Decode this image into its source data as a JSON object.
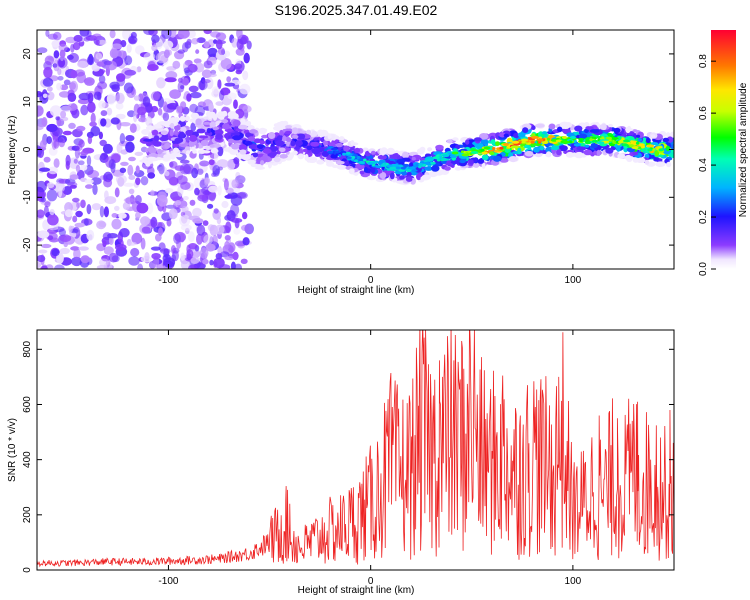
{
  "title": "S196.2025.347.01.49.E02",
  "chart_data": [
    {
      "type": "heatmap",
      "xlabel": "Height of straight line (km)",
      "ylabel": "Frequency (Hz)",
      "xlim": [
        -165,
        150
      ],
      "ylim": [
        -25,
        25
      ],
      "xticks": [
        -100,
        0,
        100
      ],
      "yticks": [
        -20,
        -10,
        0,
        10,
        20
      ],
      "colorbar": {
        "label": "Normalized spectral amplitude",
        "range": [
          0,
          0.92
        ],
        "ticks": [
          0.0,
          0.2,
          0.4,
          0.6,
          0.8
        ]
      },
      "ridge": {
        "x": [
          -110,
          -90,
          -70,
          -55,
          -40,
          -20,
          0,
          20,
          40,
          60,
          80,
          100,
          120,
          140
        ],
        "freq": [
          1,
          3,
          4,
          0,
          2,
          0,
          -3,
          -4,
          -1,
          0,
          2,
          2,
          2,
          0
        ],
        "peak_amplitude": [
          0.2,
          0.15,
          0.2,
          0.25,
          0.2,
          0.3,
          0.45,
          0.4,
          0.5,
          0.85,
          0.9,
          0.6,
          0.65,
          0.75
        ]
      }
    },
    {
      "type": "line",
      "xlabel": "Height of straight line (km)",
      "ylabel": "SNR (10 * v/v)",
      "xlim": [
        -165,
        150
      ],
      "ylim": [
        0,
        870
      ],
      "xticks": [
        -100,
        0,
        100
      ],
      "yticks": [
        0,
        200,
        400,
        600,
        800
      ],
      "series": [
        {
          "name": "SNR",
          "color": "#ee2222",
          "x": [
            -165,
            -150,
            -130,
            -110,
            -90,
            -75,
            -60,
            -50,
            -45,
            -42,
            -40,
            -35,
            -30,
            -25,
            -20,
            -15,
            -10,
            -5,
            0,
            5,
            10,
            15,
            20,
            25,
            30,
            35,
            40,
            45,
            50,
            55,
            60,
            65,
            70,
            75,
            80,
            85,
            90,
            95,
            100,
            105,
            110,
            115,
            120,
            125,
            130,
            135,
            140,
            145,
            150
          ],
          "y": [
            25,
            25,
            30,
            30,
            35,
            40,
            60,
            100,
            140,
            180,
            120,
            80,
            100,
            120,
            140,
            150,
            170,
            200,
            240,
            300,
            380,
            350,
            360,
            500,
            420,
            450,
            480,
            440,
            560,
            400,
            380,
            420,
            360,
            340,
            420,
            380,
            350,
            470,
            220,
            240,
            300,
            260,
            340,
            300,
            360,
            300,
            340,
            280,
            250
          ],
          "peaks": [
            [
              -42,
              250
            ],
            [
              -40,
              240
            ],
            [
              18,
              500
            ],
            [
              24,
              600
            ],
            [
              34,
              760
            ],
            [
              40,
              620
            ],
            [
              45,
              830
            ],
            [
              49,
              880
            ],
            [
              65,
              620
            ],
            [
              74,
              560
            ],
            [
              82,
              540
            ],
            [
              93,
              700
            ],
            [
              113,
              560
            ],
            [
              122,
              550
            ],
            [
              132,
              610
            ],
            [
              148,
              580
            ]
          ]
        }
      ]
    }
  ]
}
